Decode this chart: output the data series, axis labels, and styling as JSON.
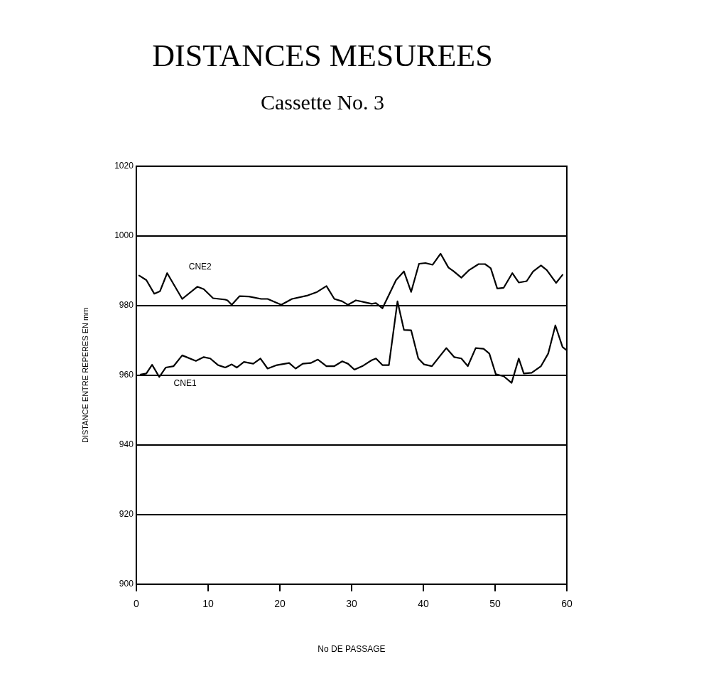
{
  "chart_data": {
    "type": "line",
    "title": "DISTANCES MESUREES",
    "subtitle": "Cassette No. 3",
    "xlabel": "No DE PASSAGE",
    "ylabel": "DISTANCE ENTRE REPERES EN mm",
    "series": [
      {
        "name": "CNE2",
        "color": "#000000",
        "x": [
          0.4,
          1.4,
          2.5,
          3.3,
          4.3,
          6.4,
          8.5,
          9.4,
          10.7,
          12.4,
          12.7,
          13.3,
          14.4,
          15.7,
          17.4,
          18.3,
          20.2,
          21.7,
          23.9,
          25.2,
          26.5,
          27.6,
          28.7,
          29.5,
          30.6,
          31.7,
          32.8,
          33.4,
          34.3,
          36.2,
          37.3,
          38.3,
          39.4,
          40.3,
          41.3,
          42.4,
          43.5,
          44.2,
          45.3,
          46.4,
          47.7,
          48.6,
          49.4,
          50.3,
          51.2,
          52.4,
          53.3,
          54.4,
          55.3,
          56.4,
          57.2,
          58.5,
          59.4
        ],
        "values": [
          988.6,
          987.3,
          983.4,
          984.1,
          989.3,
          981.9,
          985.4,
          984.7,
          982.1,
          981.7,
          981.5,
          980.2,
          982.7,
          982.6,
          981.9,
          981.9,
          980.2,
          981.9,
          982.9,
          983.9,
          985.6,
          981.9,
          981.2,
          980.2,
          981.5,
          981.0,
          980.5,
          980.7,
          979.2,
          987.3,
          989.8,
          983.9,
          992.0,
          992.2,
          991.7,
          994.9,
          990.9,
          989.9,
          988.0,
          990.2,
          991.9,
          991.9,
          990.7,
          984.9,
          985.1,
          989.3,
          986.6,
          987.0,
          989.8,
          991.5,
          990.2,
          986.5,
          988.8
        ]
      },
      {
        "name": "CNE1",
        "color": "#000000",
        "x": [
          0.6,
          1.4,
          2.2,
          3.2,
          4.1,
          5.2,
          6.4,
          8.3,
          9.4,
          10.3,
          11.4,
          12.4,
          13.3,
          14.0,
          15.0,
          16.3,
          17.3,
          18.3,
          19.6,
          21.3,
          22.2,
          23.2,
          24.3,
          25.3,
          26.5,
          27.6,
          28.7,
          29.5,
          30.4,
          31.5,
          32.8,
          33.4,
          34.3,
          35.2,
          36.4,
          37.3,
          38.3,
          39.3,
          40.1,
          41.2,
          43.2,
          44.3,
          45.3,
          46.2,
          47.3,
          48.4,
          49.2,
          50.1,
          51.2,
          52.3,
          53.3,
          54.0,
          55.1,
          56.4,
          57.4,
          58.4,
          59.4,
          60
        ],
        "values": [
          960.2,
          960.5,
          963.0,
          959.5,
          962.2,
          962.6,
          965.7,
          964.1,
          965.2,
          964.8,
          962.9,
          962.2,
          963.1,
          962.2,
          963.8,
          963.3,
          964.8,
          961.9,
          962.9,
          963.5,
          961.9,
          963.3,
          963.5,
          964.5,
          962.6,
          962.6,
          964.0,
          963.3,
          961.6,
          962.6,
          964.3,
          964.8,
          962.9,
          962.9,
          981.2,
          973.0,
          972.9,
          964.8,
          963.1,
          962.6,
          967.8,
          965.2,
          964.8,
          962.6,
          967.8,
          967.6,
          966.2,
          960.3,
          959.7,
          957.8,
          964.8,
          960.5,
          960.7,
          962.6,
          966.2,
          974.3,
          968.1,
          967.1
        ]
      }
    ],
    "xlim": [
      0,
      60
    ],
    "xticks": [
      0,
      10,
      20,
      30,
      40,
      50,
      60
    ],
    "ylim": [
      900,
      1020
    ],
    "yticks": [
      900,
      920,
      940,
      960,
      980,
      1000,
      1020
    ],
    "grid": "y",
    "legend": false,
    "marker": "none",
    "line_style": "solid"
  }
}
